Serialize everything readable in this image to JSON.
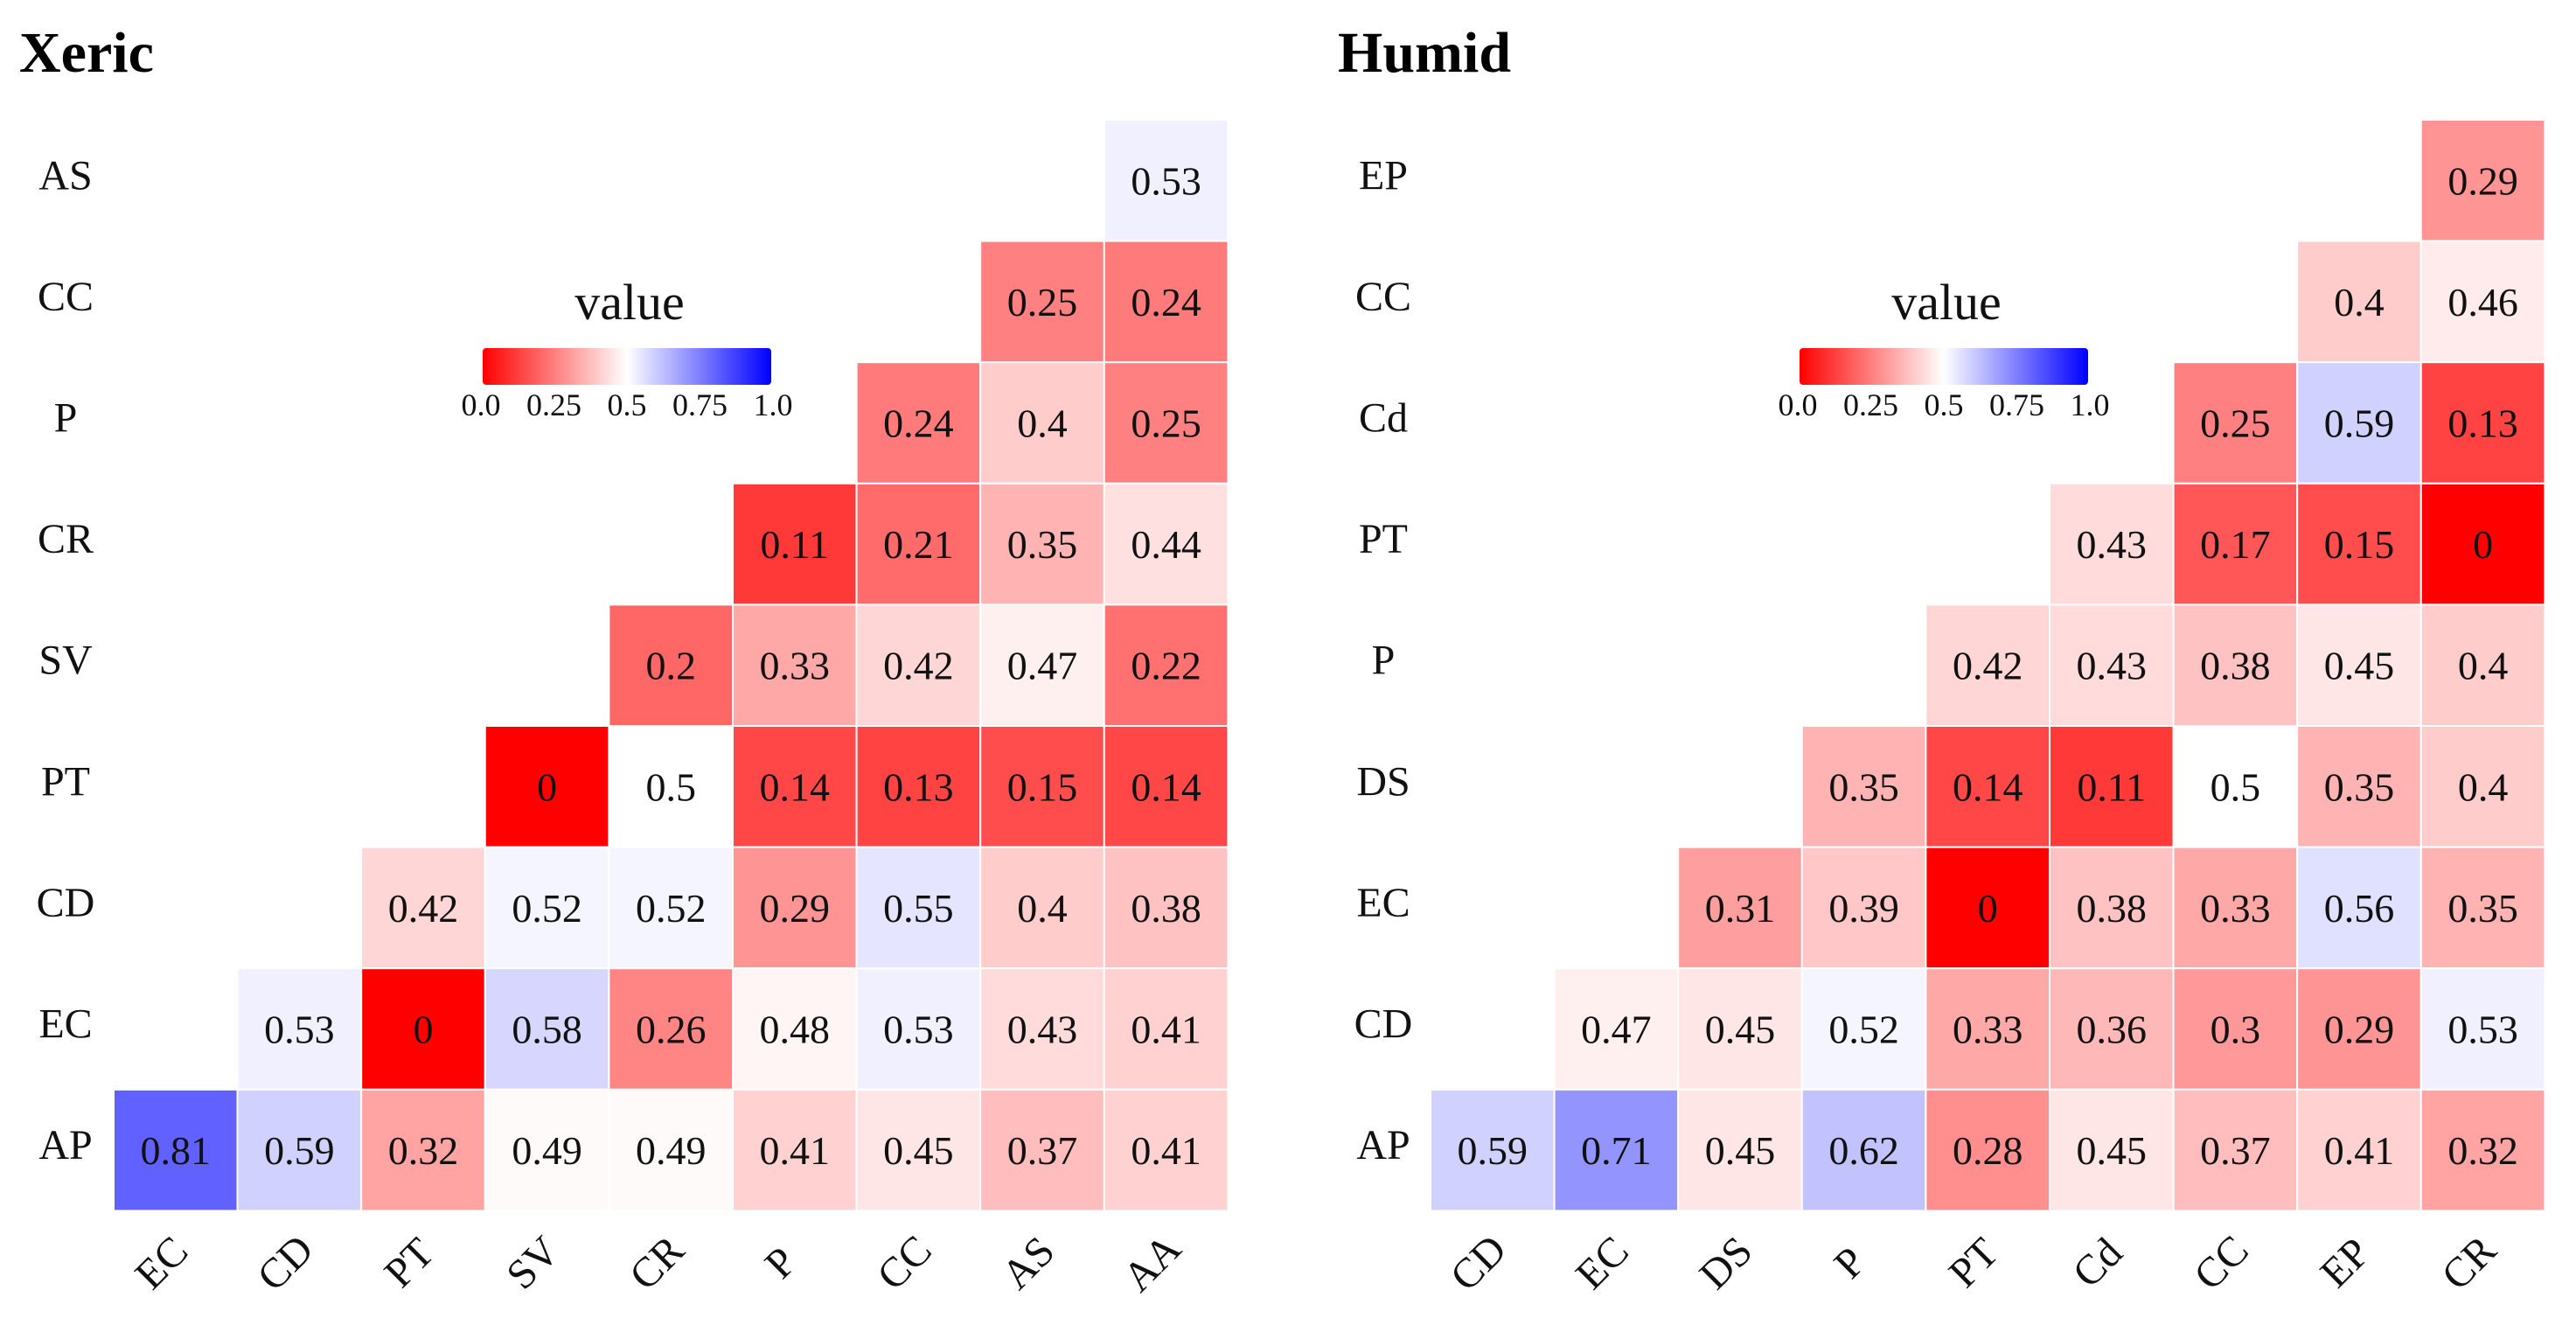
{
  "chart_data": [
    {
      "type": "heatmap",
      "title": "Xeric",
      "legend": {
        "title": "value",
        "ticks": [
          "0.0",
          "0.25",
          "0.5",
          "0.75",
          "1.0"
        ],
        "range": [
          0,
          1
        ],
        "placement": "top-center"
      },
      "colors": {
        "low": "#ff0000",
        "mid": "#ffffff",
        "high": "#0000ff"
      },
      "row_labels": [
        "AS",
        "CC",
        "P",
        "CR",
        "SV",
        "PT",
        "CD",
        "EC",
        "AP"
      ],
      "col_labels": [
        "EC",
        "CD",
        "PT",
        "SV",
        "CR",
        "P",
        "CC",
        "AS",
        "AA"
      ],
      "cells": [
        [
          null,
          null,
          null,
          null,
          null,
          null,
          null,
          null,
          0.53
        ],
        [
          null,
          null,
          null,
          null,
          null,
          null,
          null,
          0.25,
          0.24
        ],
        [
          null,
          null,
          null,
          null,
          null,
          null,
          0.24,
          0.4,
          0.25
        ],
        [
          null,
          null,
          null,
          null,
          null,
          0.11,
          0.21,
          0.35,
          0.44
        ],
        [
          null,
          null,
          null,
          null,
          0.2,
          0.33,
          0.42,
          0.47,
          0.22
        ],
        [
          null,
          null,
          null,
          0,
          0.5,
          0.14,
          0.13,
          0.15,
          0.14
        ],
        [
          null,
          null,
          0.42,
          0.52,
          0.52,
          0.29,
          0.55,
          0.4,
          0.38
        ],
        [
          null,
          0.53,
          0,
          0.58,
          0.26,
          0.48,
          0.53,
          0.43,
          0.41
        ],
        [
          0.81,
          0.59,
          0.32,
          0.49,
          0.49,
          0.41,
          0.45,
          0.37,
          0.41
        ]
      ]
    },
    {
      "type": "heatmap",
      "title": "Humid",
      "legend": {
        "title": "value",
        "ticks": [
          "0.0",
          "0.25",
          "0.5",
          "0.75",
          "1.0"
        ],
        "range": [
          0,
          1
        ],
        "placement": "top-center"
      },
      "colors": {
        "low": "#ff0000",
        "mid": "#ffffff",
        "high": "#0000ff"
      },
      "row_labels": [
        "EP",
        "CC",
        "Cd",
        "PT",
        "P",
        "DS",
        "EC",
        "CD",
        "AP"
      ],
      "col_labels": [
        "CD",
        "EC",
        "DS",
        "P",
        "PT",
        "Cd",
        "CC",
        "EP",
        "CR"
      ],
      "cells": [
        [
          null,
          null,
          null,
          null,
          null,
          null,
          null,
          null,
          0.29
        ],
        [
          null,
          null,
          null,
          null,
          null,
          null,
          null,
          0.4,
          0.46
        ],
        [
          null,
          null,
          null,
          null,
          null,
          null,
          0.25,
          0.59,
          0.13
        ],
        [
          null,
          null,
          null,
          null,
          null,
          0.43,
          0.17,
          0.15,
          0
        ],
        [
          null,
          null,
          null,
          null,
          0.42,
          0.43,
          0.38,
          0.45,
          0.4
        ],
        [
          null,
          null,
          null,
          0.35,
          0.14,
          0.11,
          0.5,
          0.35,
          0.4
        ],
        [
          null,
          null,
          0.31,
          0.39,
          0,
          0.38,
          0.33,
          0.56,
          0.35
        ],
        [
          null,
          0.47,
          0.45,
          0.52,
          0.33,
          0.36,
          0.3,
          0.29,
          0.53
        ],
        [
          0.59,
          0.71,
          0.45,
          0.62,
          0.28,
          0.45,
          0.37,
          0.41,
          0.32
        ]
      ]
    }
  ]
}
